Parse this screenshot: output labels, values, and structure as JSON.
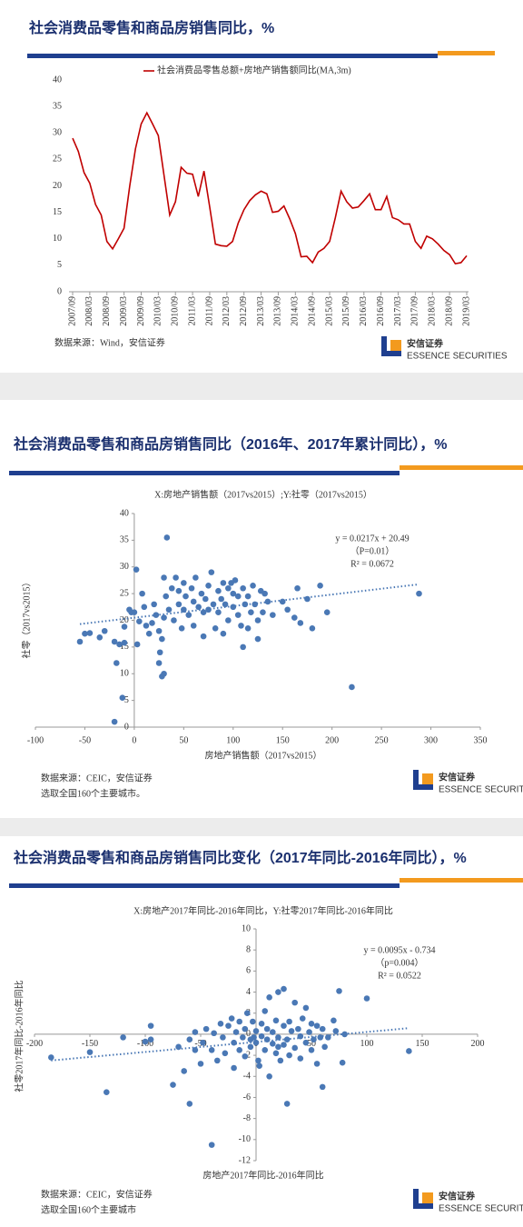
{
  "brand": {
    "name": "安信证券",
    "sub": "ESSENCE SECURITIES"
  },
  "chart_data": [
    {
      "type": "line",
      "header": "社会消费品零售和商品房销售同比，%",
      "source": [
        "数据来源：Wind，安信证券"
      ],
      "categories": [
        "2007/09",
        null,
        null,
        "2008/03",
        null,
        null,
        "2008/09",
        null,
        null,
        "2009/03",
        null,
        null,
        "2009/09",
        null,
        null,
        "2010/03",
        null,
        null,
        "2010/09",
        null,
        null,
        "2011/03",
        null,
        null,
        "2011/09",
        null,
        null,
        "2012/03",
        null,
        null,
        "2012/09",
        null,
        null,
        "2013/03",
        null,
        null,
        "2013/09",
        null,
        null,
        "2014/03",
        null,
        null,
        "2014/09",
        null,
        null,
        "2015/03",
        null,
        null,
        "2015/09",
        null,
        null,
        "2016/03",
        null,
        null,
        "2016/09",
        null,
        null,
        "2017/03",
        null,
        null,
        "2017/09",
        null,
        null,
        "2018/03",
        null,
        null,
        "2018/09",
        null,
        null,
        "2019/03"
      ],
      "series": [
        {
          "name": "社会消费品零售总额+房地产销售额同比(MA,3m)",
          "color": "#c00000",
          "values": [
            29,
            26.5,
            22.5,
            20.5,
            16.5,
            14.5,
            9.5,
            8.1,
            10,
            12,
            20,
            27,
            31.7,
            33.8,
            31.7,
            29.5,
            22,
            14.5,
            17,
            23.5,
            22.4,
            22.2,
            18,
            22.8,
            16,
            9,
            8.7,
            8.6,
            9.5,
            13,
            15.5,
            17.2,
            18.3,
            19,
            18.5,
            15,
            15.2,
            16.2,
            13.8,
            11,
            6.6,
            6.7,
            5.5,
            7.5,
            8.2,
            9.5,
            14,
            19,
            17,
            15.8,
            16,
            17.2,
            18.5,
            15.5,
            15.5,
            18,
            14,
            13.6,
            12.8,
            12.8,
            9.5,
            8.2,
            10.5,
            10,
            9,
            7.8,
            7,
            5.3,
            5.5,
            6.8
          ]
        }
      ],
      "ylim": [
        0,
        40
      ],
      "yticks": [
        0,
        5,
        10,
        15,
        20,
        25,
        30,
        35,
        40
      ]
    },
    {
      "type": "scatter",
      "header": "社会消费品零售和商品房销售同比（2016年、2017年累计同比），%",
      "source": [
        "数据来源：CEIC，安信证券",
        "选取全国160个主要城市。"
      ],
      "title": "X:房地产销售额（2017vs2015）;Y:社零（2017vs2015）",
      "xlabel": "房地产销售额（2017vs2015）",
      "ylabel": "社零（2017vs2015）",
      "annotations": [
        "y = 0.0217x + 20.49",
        "（P=0.01）",
        "R² = 0.0672"
      ],
      "trendline": {
        "slope": 0.0217,
        "intercept": 20.49
      },
      "color": "#4a78b5",
      "x": [
        -55,
        -50,
        -45,
        -35,
        -30,
        -20,
        -18,
        -15,
        -12,
        -10,
        -5,
        -3,
        -20,
        -10,
        0,
        2,
        3,
        5,
        8,
        10,
        12,
        15,
        18,
        20,
        22,
        25,
        25,
        26,
        28,
        30,
        28,
        30,
        30,
        32,
        33,
        35,
        38,
        40,
        42,
        45,
        45,
        48,
        50,
        50,
        52,
        55,
        58,
        60,
        60,
        62,
        65,
        68,
        70,
        70,
        72,
        75,
        75,
        78,
        80,
        82,
        85,
        85,
        88,
        90,
        90,
        92,
        95,
        95,
        98,
        100,
        100,
        102,
        105,
        105,
        108,
        110,
        110,
        112,
        115,
        115,
        118,
        120,
        122,
        125,
        125,
        128,
        130,
        132,
        135,
        140,
        150,
        155,
        162,
        165,
        168,
        175,
        180,
        188,
        195,
        220,
        288
      ],
      "values": [
        16,
        17.5,
        17.6,
        16.8,
        18,
        16,
        12,
        15.5,
        5.5,
        18.8,
        22,
        21.5,
        1,
        15.8,
        21.5,
        29.5,
        15.5,
        19.8,
        25,
        22.5,
        19,
        17.5,
        19.5,
        23,
        21,
        18,
        12,
        14,
        9.5,
        10,
        16.5,
        20.5,
        28,
        24.5,
        35.5,
        22,
        26,
        20,
        28,
        23,
        25.5,
        18.5,
        22,
        27,
        24.5,
        21,
        26,
        23.5,
        19,
        28,
        22.5,
        25,
        17,
        21.5,
        24,
        26.5,
        22,
        29,
        23,
        18.5,
        25.5,
        21.5,
        24,
        27,
        17.5,
        23,
        26,
        20,
        27,
        22.5,
        25,
        27.5,
        21,
        24.5,
        19,
        26,
        15,
        23,
        24.5,
        18.5,
        21.5,
        26.5,
        23,
        16.5,
        20,
        25.5,
        21.5,
        25,
        23.5,
        21,
        23.5,
        22,
        20.5,
        26,
        19.5,
        24,
        18.5,
        26.5,
        21.5,
        7.5,
        25
      ],
      "xlim": [
        -100,
        350
      ],
      "xticks": [
        -100,
        -50,
        0,
        50,
        100,
        150,
        200,
        250,
        300,
        350
      ],
      "ylim": [
        0,
        40
      ],
      "yticks": [
        0,
        5,
        10,
        15,
        20,
        25,
        30,
        35,
        40
      ]
    },
    {
      "type": "scatter",
      "header": "社会消费品零售和商品房销售同比变化（2017年同比-2016年同比），%",
      "source": [
        "数据来源：CEIC，安信证券",
        "选取全国160个主要城市"
      ],
      "title": "X:房地产2017年同比-2016年同比，Y:社零2017年同比-2016年同比",
      "xlabel": "房地产2017年同比-2016年同比",
      "ylabel": "社零2017年同比-2016年同比",
      "annotations": [
        "y = 0.0095x - 0.734",
        "（p=0.004）",
        "R² = 0.0522"
      ],
      "trendline": {
        "slope": 0.0095,
        "intercept": -0.734
      },
      "color": "#4a78b5",
      "x": [
        -185,
        -150,
        -135,
        -120,
        -100,
        -95,
        -95,
        -75,
        -70,
        -65,
        -60,
        -60,
        -55,
        -55,
        -50,
        -48,
        -45,
        -40,
        -40,
        -38,
        -35,
        -32,
        -30,
        -28,
        -25,
        -22,
        -20,
        -20,
        -18,
        -15,
        -15,
        -12,
        -10,
        -10,
        -8,
        -5,
        -5,
        -3,
        0,
        0,
        2,
        3,
        5,
        5,
        8,
        8,
        10,
        10,
        12,
        12,
        15,
        15,
        18,
        18,
        20,
        20,
        22,
        25,
        25,
        25,
        28,
        28,
        30,
        30,
        32,
        35,
        35,
        38,
        40,
        40,
        42,
        45,
        45,
        48,
        50,
        50,
        52,
        55,
        55,
        58,
        60,
        60,
        62,
        65,
        70,
        72,
        75,
        78,
        80,
        100,
        138,
        20,
        -2
      ],
      "values": [
        -2.2,
        -1.7,
        -5.5,
        -0.3,
        -0.7,
        -0.5,
        0.8,
        -4.8,
        -1.2,
        -3.5,
        -6.6,
        -0.5,
        0.2,
        -1.5,
        -2.8,
        -0.8,
        0.5,
        -10.5,
        -1.5,
        0.1,
        -2.5,
        1,
        -0.3,
        -1.8,
        0.8,
        1.5,
        -0.8,
        -3.2,
        0.2,
        -1.5,
        1.2,
        -0.3,
        -2.1,
        0.5,
        2,
        -0.5,
        -1.2,
        1.2,
        -0.8,
        0.3,
        -2.5,
        -3,
        -0.2,
        1,
        2.2,
        -1.5,
        -0.5,
        0.5,
        -4,
        3.5,
        -0.9,
        0.2,
        -1.8,
        1.3,
        4,
        -0.3,
        -2.5,
        0.8,
        -1,
        4.3,
        -0.5,
        -6.6,
        1.2,
        -2,
        0.3,
        -1.3,
        3,
        0.5,
        -0.2,
        -2.3,
        1.5,
        -0.8,
        2.5,
        0.2,
        -1.5,
        1,
        -0.5,
        -2.8,
        0.8,
        -0.3,
        0.5,
        -5,
        -1.2,
        -0.3,
        1.3,
        0.3,
        4.1,
        -2.7,
        0,
        3.4,
        -1.6,
        -1.2,
        -0.3
      ],
      "xlim": [
        -200,
        200
      ],
      "xticks": [
        -200,
        -150,
        -100,
        -50,
        0,
        50,
        100,
        150,
        200
      ],
      "ylim": [
        -12,
        10
      ],
      "yticks": [
        -12,
        -10,
        -8,
        -6,
        -4,
        -2,
        0,
        2,
        4,
        6,
        8,
        10
      ]
    }
  ]
}
